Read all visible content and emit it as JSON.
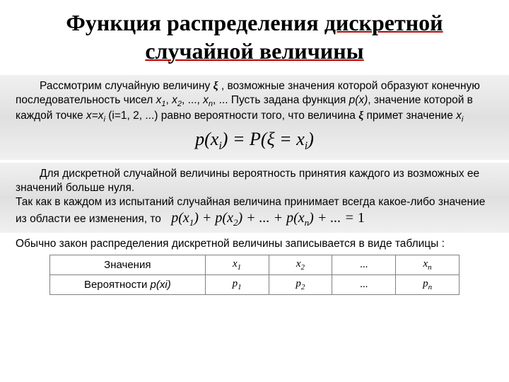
{
  "title": {
    "pre": "Функция распределения ",
    "u1": "дискретной",
    "br": "",
    "u2": "случайной величины"
  },
  "para1": {
    "t1": "Рассмотрим случайную величину ",
    "xi": "ξ",
    "t2": " , возможные значения которой образуют конечную последовательность чисел ",
    "x1": "x",
    "s1": "1",
    "c1": ", ",
    "x2": "x",
    "s2": "2",
    "c2": ", ..., ",
    "xn": "x",
    "sn": "n",
    "t3": ", ...  Пусть задана функция ",
    "px": "p(x)",
    "t4": ", значение которой в каждой точке ",
    "eq": "x=x",
    "si": "i",
    "t5": " (i=1, 2, ...) равно вероятности того, что величина ",
    "xi2": "ξ",
    "t6": " примет значение ",
    "xf": "x",
    "sf": "i"
  },
  "formula1": "p(x<sub>i</sub>) = P(ξ = x<sub>i</sub>)",
  "para2": {
    "line1": "Для дискретной случайной величины вероятность принятия каждого из возможных ее значений больше нуля.",
    "line2a": "Так как в каждом из испытаний случайная величина принимает всегда какое-либо значение из области ее изменения, то",
    "formula": "p(x<sub>1</sub>) + p(x<sub>2</sub>) + ... + p(x<sub>n</sub>) + ... = 1"
  },
  "para3": "Обычно закон распределения дискретной величины записывается в виде таблицы :",
  "table": {
    "row1_header": "Значения",
    "row2_header": "Вероятности p(xi)",
    "cols": {
      "c1x": "x",
      "c1s": "1",
      "c2x": "x",
      "c2s": "2",
      "dots": "...",
      "cnx": "x",
      "cns": "n",
      "p1x": "p",
      "p1s": "1",
      "p2x": "p",
      "p2s": "2",
      "pnx": "p",
      "pns": "n"
    }
  },
  "style": {
    "bg": "#ffffff",
    "bandBg": "#eaeaea",
    "underlineColor": "#c00000",
    "titleFontSize": 32,
    "bodyFontSize": 15.5,
    "formulaFontSize": 26,
    "inlineFormulaFontSize": 20,
    "tableBorderColor": "#808080",
    "tableWidth": 580
  }
}
